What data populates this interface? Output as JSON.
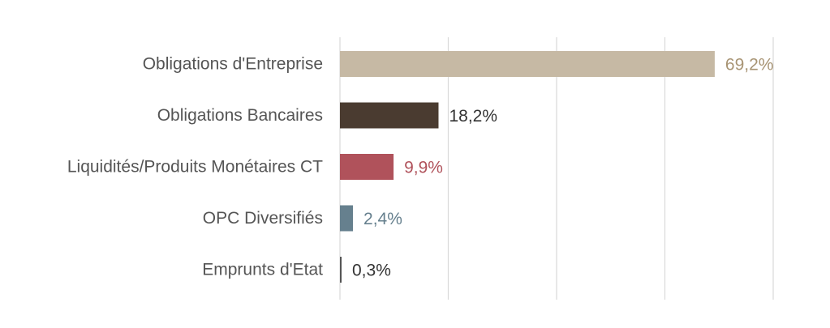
{
  "chart_data": {
    "type": "bar",
    "orientation": "horizontal",
    "categories": [
      "Obligations d'Entreprise",
      "Obligations Bancaires",
      "Liquidités/Produits Monétaires CT",
      "OPC Diversifiés",
      "Emprunts d'Etat"
    ],
    "values": [
      69.2,
      18.2,
      9.9,
      2.4,
      0.3
    ],
    "value_labels": [
      "69,2%",
      "18,2%",
      "9,9%",
      "2,4%",
      "0,3%"
    ],
    "bar_colors": [
      "#c6b9a4",
      "#4a3b30",
      "#b0525b",
      "#66808e",
      "#555555"
    ],
    "label_colors": [
      "#a89474",
      "#333333",
      "#b0525b",
      "#66808e",
      "#333333"
    ],
    "title": "",
    "xlabel": "",
    "ylabel": "",
    "xlim": [
      0,
      80
    ],
    "gridlines_at": [
      0,
      20,
      40,
      60,
      80
    ],
    "grid": true,
    "legend": "none"
  }
}
